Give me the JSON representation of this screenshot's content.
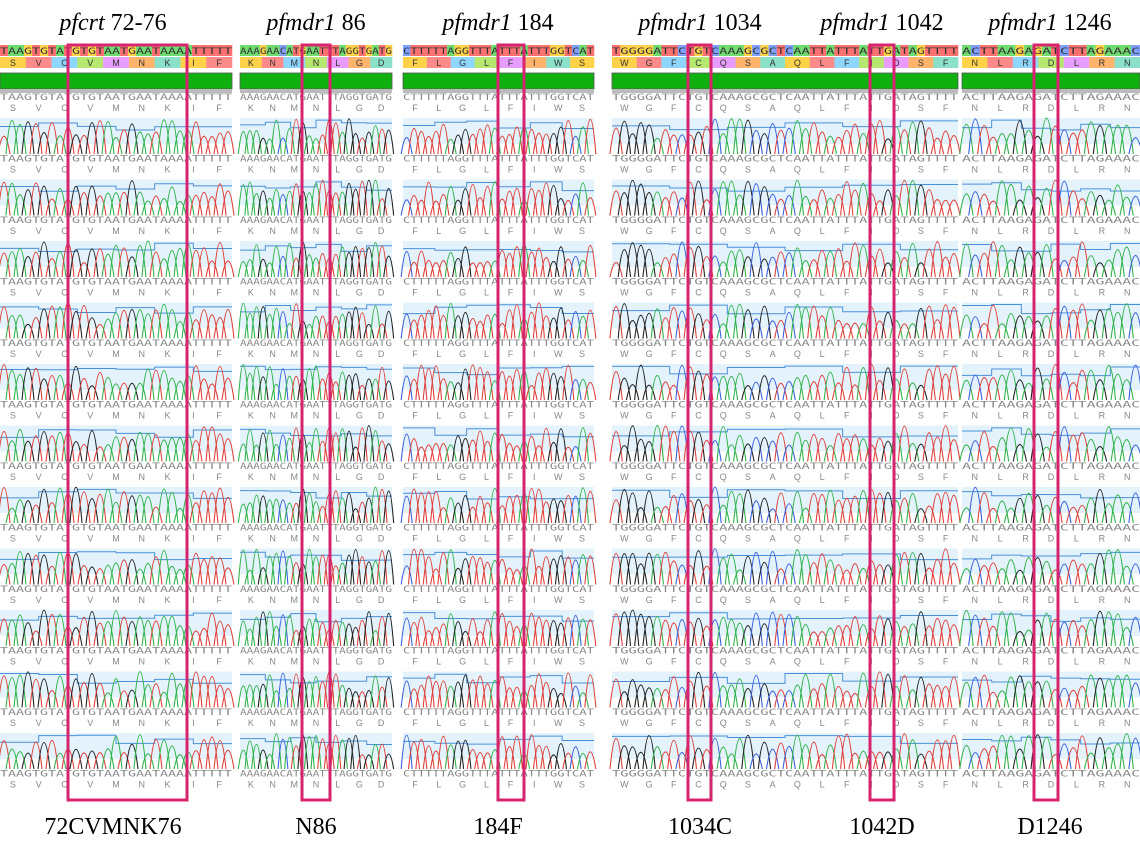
{
  "panels": [
    {
      "titles": [
        {
          "gene": "pfcrt",
          "position": "72-76"
        }
      ],
      "sequence": "TAAGTGTATGTGTAATGAATAAAATTTTT",
      "amino_acids": [
        "S",
        "V",
        "C",
        "V",
        "M",
        "N",
        "K",
        "I",
        "F"
      ],
      "labels": [
        "72CVMNK76"
      ]
    },
    {
      "titles": [
        {
          "gene": "pfmdr1",
          "position": "86"
        }
      ],
      "sequence": "AAAGAACATGAATTTAGGTGATG",
      "amino_acids": [
        "K",
        "N",
        "M",
        "N",
        "L",
        "G",
        "D"
      ],
      "labels": [
        "N86"
      ]
    },
    {
      "titles": [
        {
          "gene": "pfmdr1",
          "position": "184"
        }
      ],
      "sequence": "CTTTTTAGGTTTATTTATTTGGTCAT",
      "amino_acids": [
        "F",
        "L",
        "G",
        "L",
        "F",
        "I",
        "W",
        "S"
      ],
      "labels": [
        "184F"
      ]
    },
    {
      "titles": [
        {
          "gene": "pfmdr1",
          "position": "1034"
        },
        {
          "gene": "pfmdr1",
          "position": "1042"
        }
      ],
      "sequence": "TGGGGATTCTGTCAAAGCGCTCAATTATTTATTGATAGTTTT",
      "amino_acids": [
        "W",
        "G",
        "F",
        "C",
        "Q",
        "S",
        "A",
        "Q",
        "L",
        "F",
        "I",
        "D",
        "S",
        "F"
      ],
      "labels": [
        "1034C",
        "1042D"
      ]
    },
    {
      "titles": [
        {
          "gene": "pfmdr1",
          "position": "1246"
        }
      ],
      "sequence": "ACTTAAGAGATCTTAGAAAC",
      "amino_acids": [
        "N",
        "L",
        "R",
        "D",
        "L",
        "R",
        "N"
      ],
      "labels": [
        "D1246"
      ]
    }
  ]
}
